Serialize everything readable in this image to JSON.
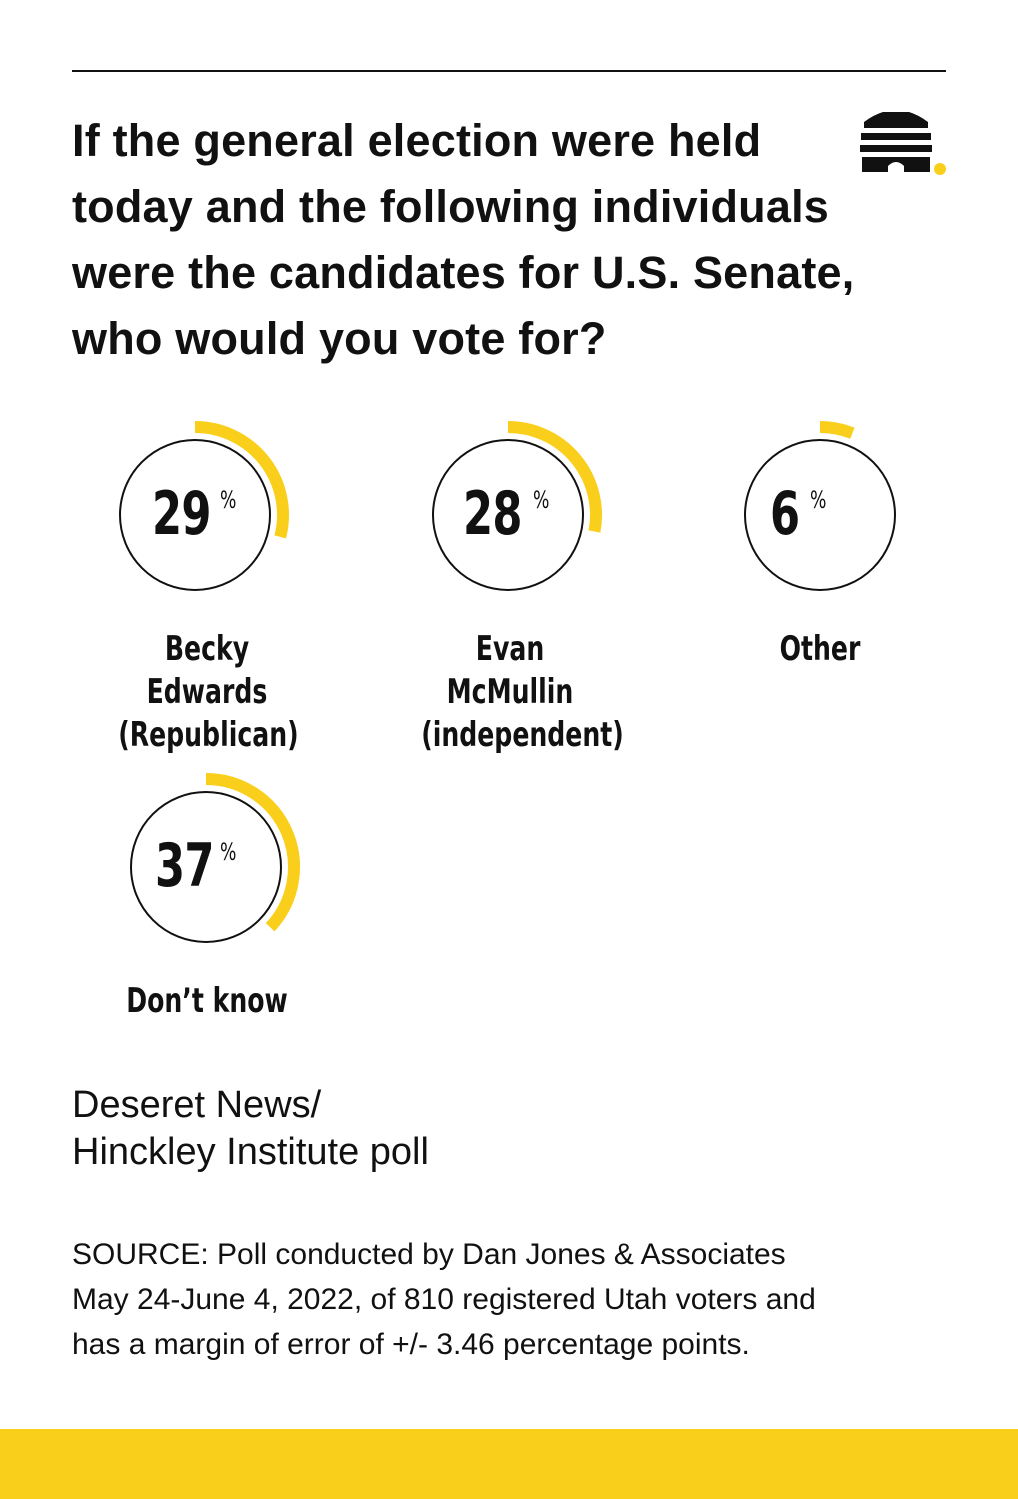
{
  "header": {
    "title": "If the general election were held today and the following individuals were the candidates for U.S. Senate, who would you vote for?"
  },
  "colors": {
    "accent": "#f9cf1c",
    "ink": "#111111",
    "background": "#ffffff"
  },
  "brand": {
    "icon": "beehive-icon"
  },
  "chart_data": {
    "type": "pie",
    "unit": "%",
    "categories": [
      "Becky Edwards (Republican)",
      "Evan McMullin (independent)",
      "Other",
      "Don’t know"
    ],
    "values": [
      29,
      28,
      6,
      37
    ],
    "items": [
      {
        "label_line1": "Becky Edwards",
        "label_line2": "(Republican)",
        "value": 29
      },
      {
        "label_line1": "Evan McMullin",
        "label_line2": "(independent)",
        "value": 28
      },
      {
        "label_line1": "Other",
        "label_line2": "",
        "value": 6
      },
      {
        "label_line1": "Don’t know",
        "label_line2": "",
        "value": 37
      }
    ]
  },
  "footer": {
    "line1": "Deseret News/",
    "line2": "Hinckley Institute poll",
    "source_line1": "SOURCE: Poll conducted by Dan Jones & Associates",
    "source_line2": "May 24-June 4, 2022, of 810 registered Utah voters and",
    "source_line3": "has a margin of error of +/- 3.46 percentage points."
  }
}
